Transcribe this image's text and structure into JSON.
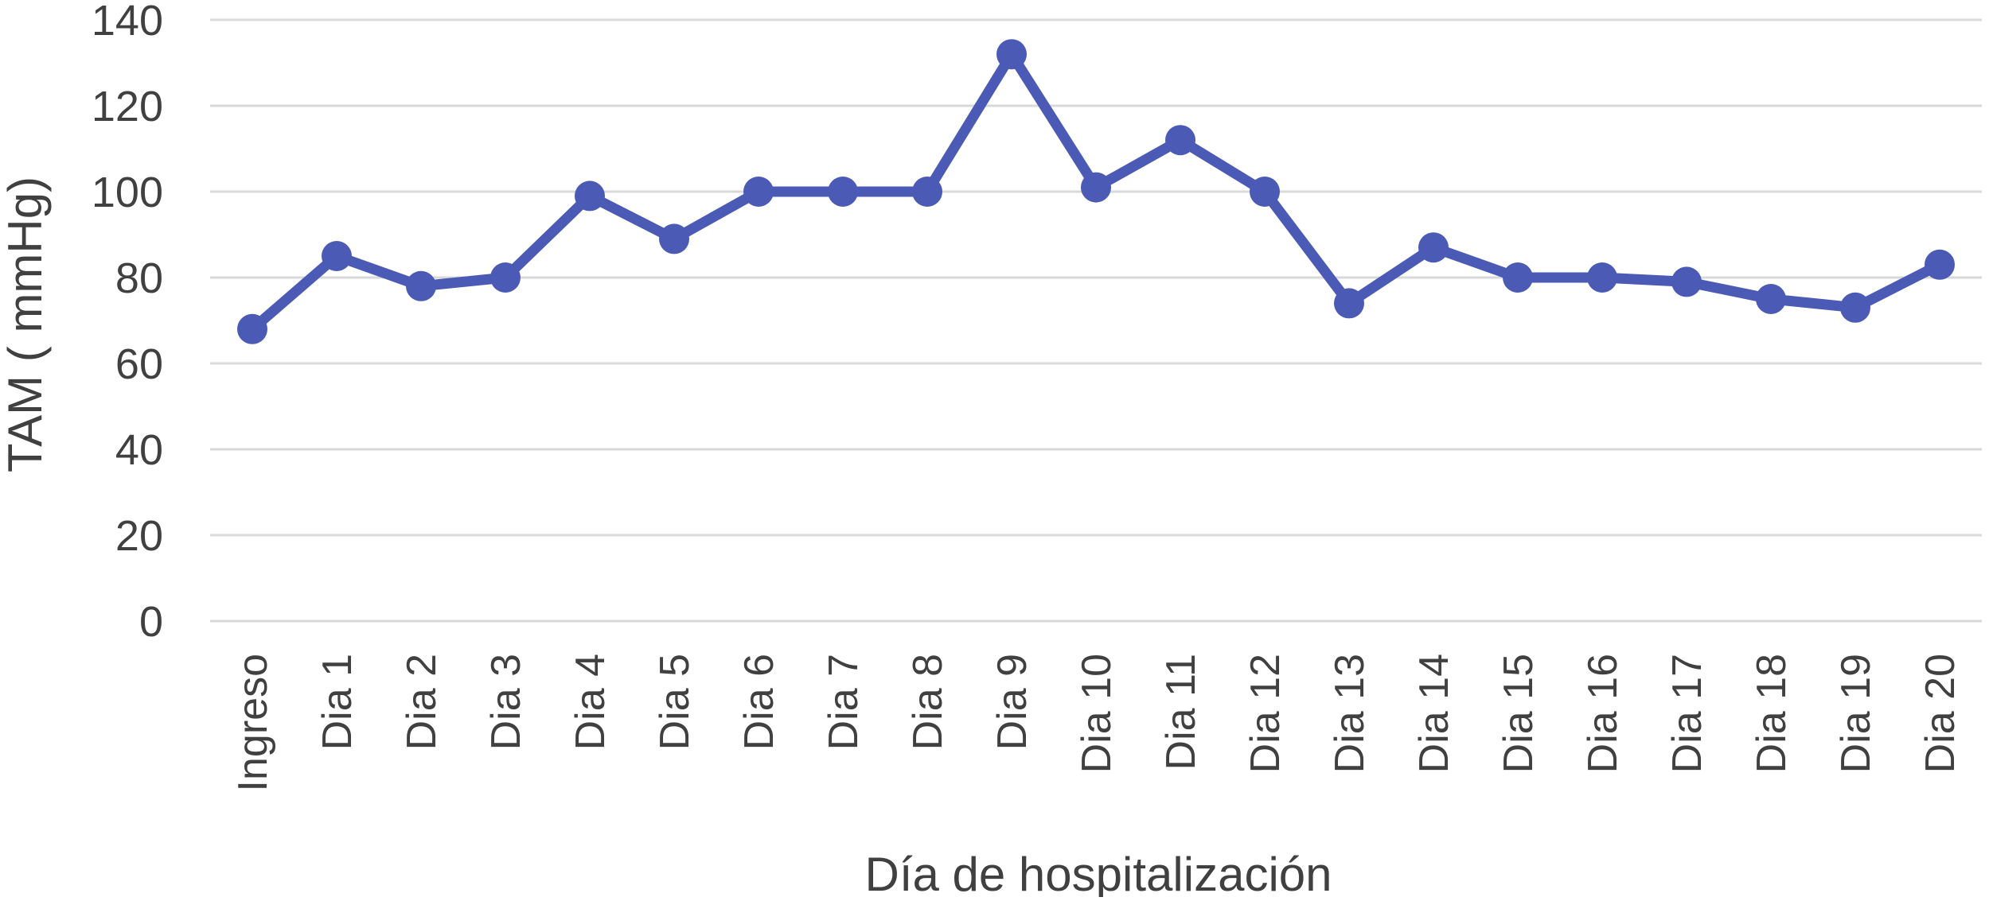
{
  "chart_data": {
    "type": "line",
    "title": "",
    "xlabel": "Día de hospitalización",
    "ylabel": "TAM ( mmHg)",
    "ylim": [
      0,
      140
    ],
    "yticks": [
      0,
      20,
      40,
      60,
      80,
      100,
      120,
      140
    ],
    "grid": true,
    "legend": "none",
    "categories": [
      "Ingreso",
      "Dia 1",
      "Dia 2",
      "Dia 3",
      "Dia 4",
      "Dia 5",
      "Dia 6",
      "Dia 7",
      "Dia 8",
      "Dia 9",
      "Dia 10",
      "Dia 11",
      "Dia 12",
      "Dia 13",
      "Dia 14",
      "Dia 15",
      "Dia 16",
      "Dia 17",
      "Dia 18",
      "Dia 19",
      "Dia 20"
    ],
    "series": [
      {
        "values": [
          68,
          85,
          78,
          80,
          99,
          89,
          100,
          100,
          100,
          132,
          101,
          112,
          100,
          74,
          87,
          80,
          80,
          79,
          75,
          73,
          83
        ],
        "color": "#4a5ab5"
      }
    ]
  }
}
